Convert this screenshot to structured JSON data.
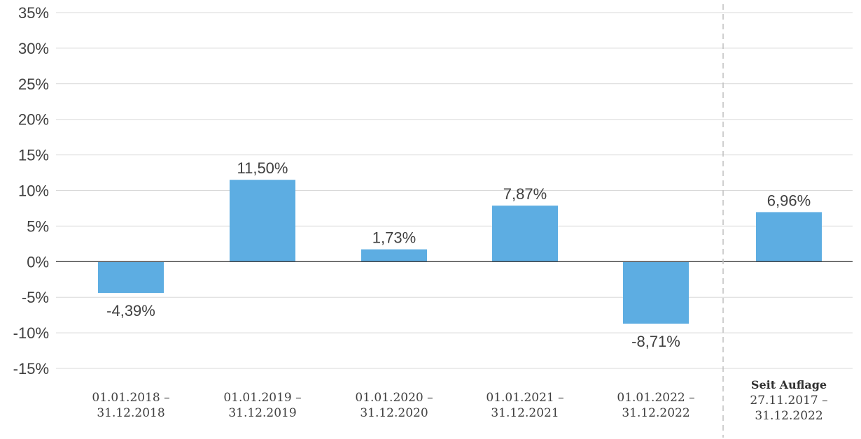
{
  "chart_data": {
    "type": "bar",
    "title": "",
    "xlabel": "",
    "ylabel": "",
    "ylim": [
      -15,
      35
    ],
    "y_ticks": [
      35,
      30,
      25,
      20,
      15,
      10,
      5,
      0,
      -5,
      -10,
      -15
    ],
    "y_tick_labels": [
      "35%",
      "30%",
      "25%",
      "20%",
      "15%",
      "10%",
      "5%",
      "0%",
      "-5%",
      "-10%",
      "-15%"
    ],
    "grid": true,
    "legend": "none",
    "categories": [
      {
        "lines": [
          "01.01.2018 –",
          "31.12.2018"
        ]
      },
      {
        "lines": [
          "01.01.2019 –",
          "31.12.2019"
        ]
      },
      {
        "lines": [
          "01.01.2020 –",
          "31.12.2020"
        ]
      },
      {
        "lines": [
          "01.01.2021 –",
          "31.12.2021"
        ]
      },
      {
        "lines": [
          "01.01.2022 –",
          "31.12.2022"
        ]
      },
      {
        "heading": "Seit Auflage",
        "lines": [
          "27.11.2017 –",
          "31.12.2022"
        ]
      }
    ],
    "values": [
      -4.39,
      11.5,
      1.73,
      7.87,
      -8.71,
      6.96
    ],
    "value_labels": [
      "-4,39%",
      "11,50%",
      "1,73%",
      "7,87%",
      "-8,71%",
      "6,96%"
    ],
    "separator_before_category": 5,
    "colors": {
      "bar": "#5DADE2",
      "grid": "#D9D9D9",
      "zero_line": "#404040",
      "separator": "#BFBFBF",
      "text": "#404040"
    }
  }
}
